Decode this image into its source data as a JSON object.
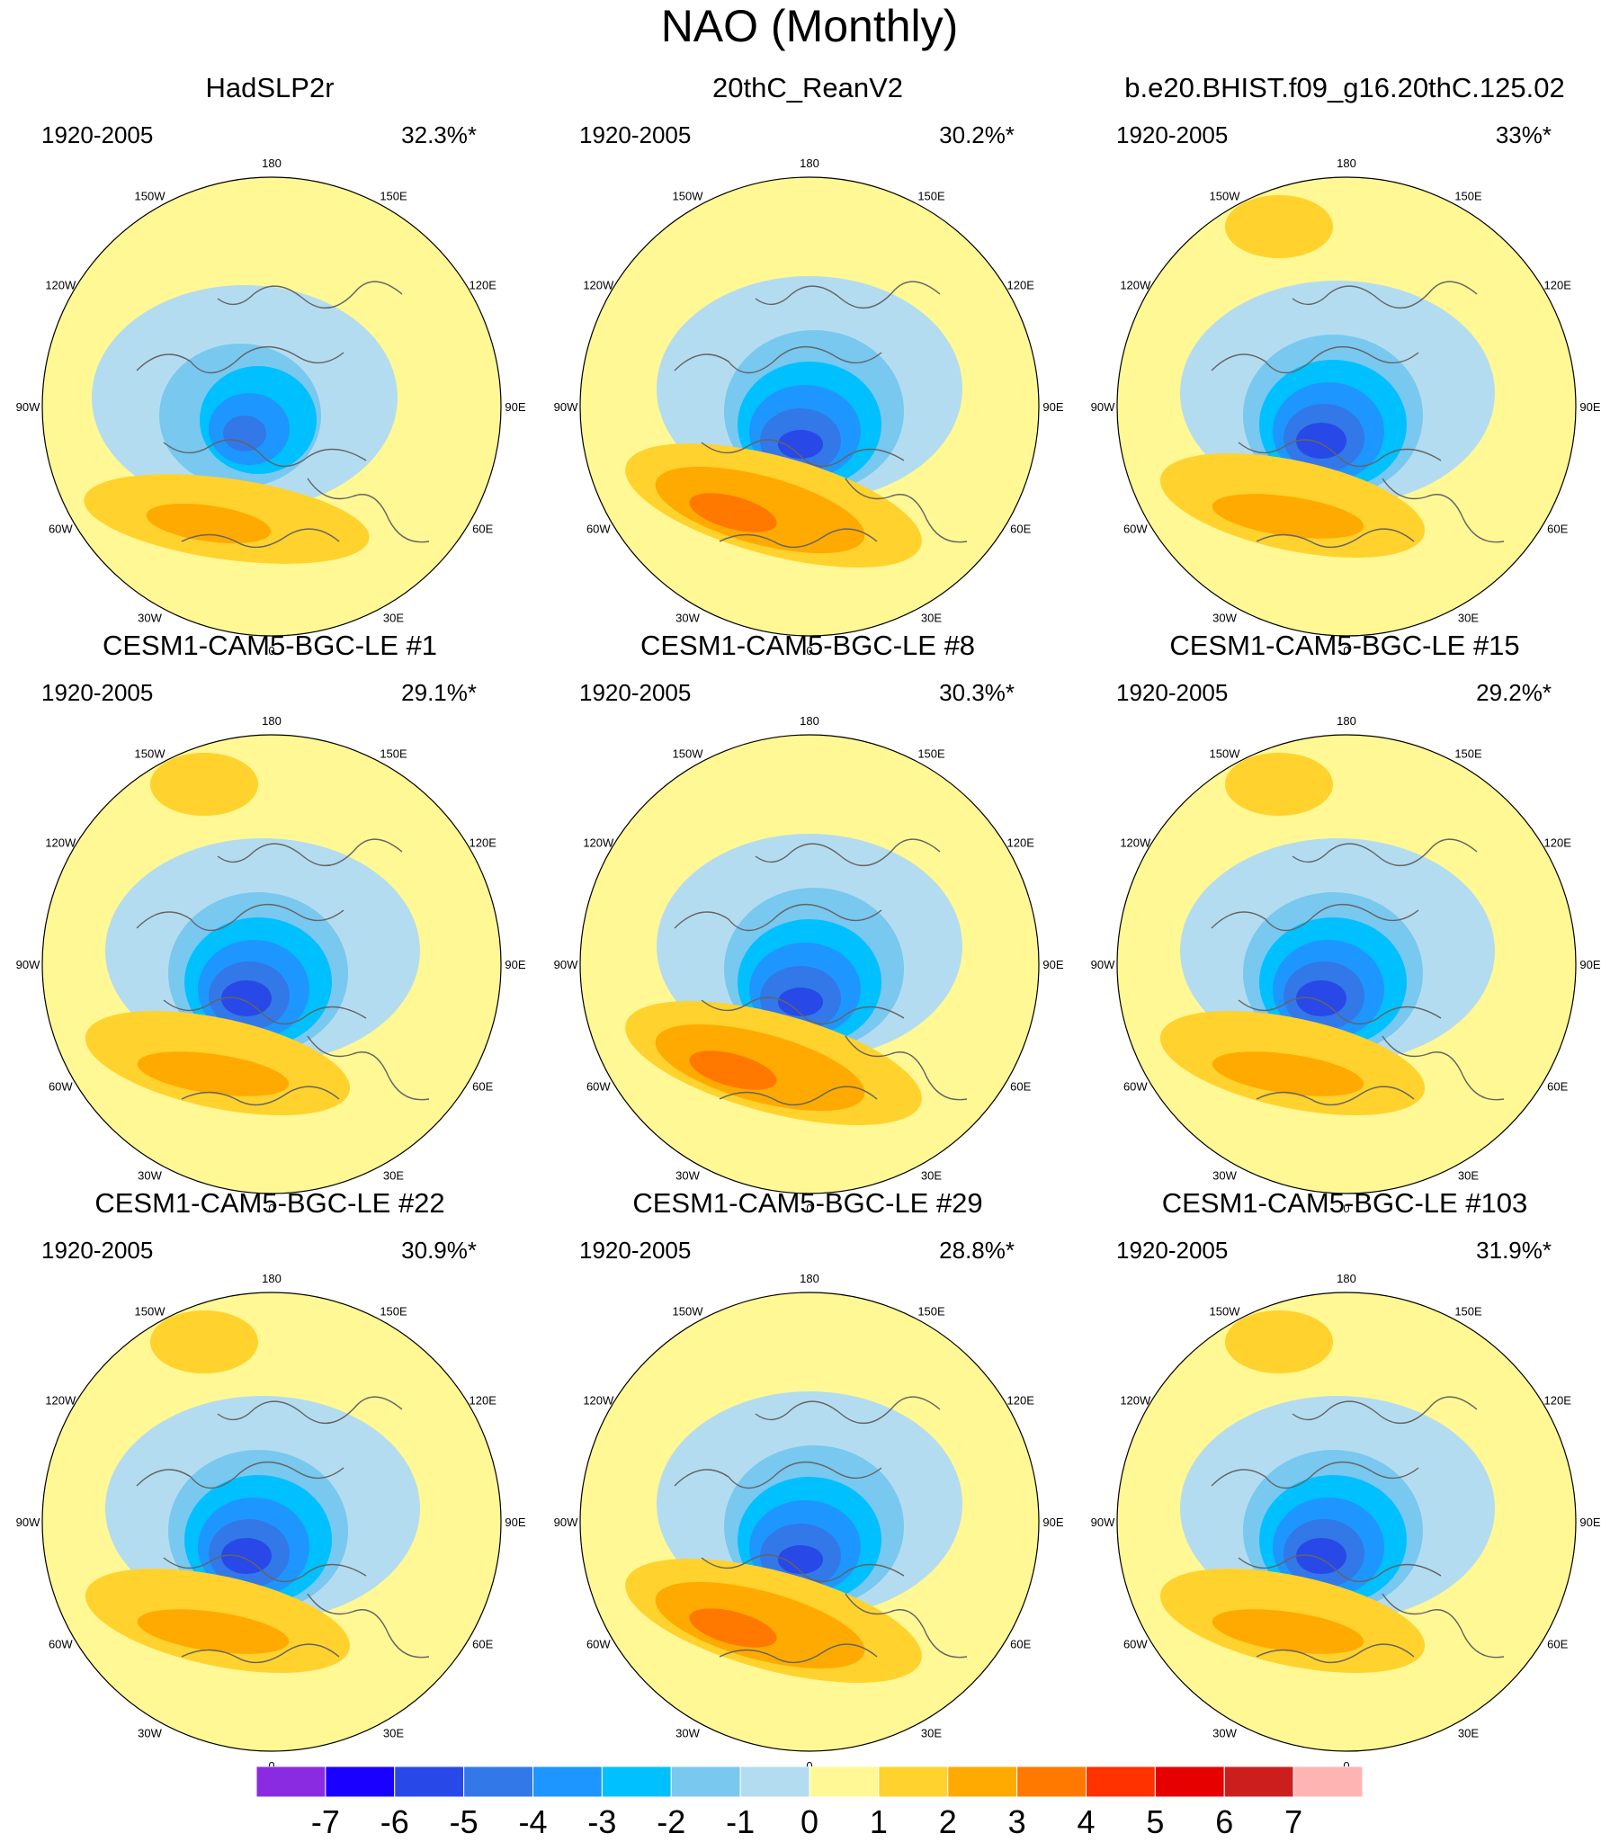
{
  "title": "NAO (Monthly)",
  "panels": [
    {
      "title": "HadSLP2r",
      "period": "1920-2005",
      "percent": "32.3%*",
      "pattern": 0
    },
    {
      "title": "20thC_ReanV2",
      "period": "1920-2005",
      "percent": "30.2%*",
      "pattern": 1
    },
    {
      "title": "b.e20.BHIST.f09_g16.20thC.125.02",
      "period": "1920-2005",
      "percent": "33%*",
      "pattern": 2
    },
    {
      "title": "CESM1-CAM5-BGC-LE #1",
      "period": "1920-2005",
      "percent": "29.1%*",
      "pattern": 2
    },
    {
      "title": "CESM1-CAM5-BGC-LE #8",
      "period": "1920-2005",
      "percent": "30.3%*",
      "pattern": 1
    },
    {
      "title": "CESM1-CAM5-BGC-LE #15",
      "period": "1920-2005",
      "percent": "29.2%*",
      "pattern": 2
    },
    {
      "title": "CESM1-CAM5-BGC-LE #22",
      "period": "1920-2005",
      "percent": "30.9%*",
      "pattern": 2
    },
    {
      "title": "CESM1-CAM5-BGC-LE #29",
      "period": "1920-2005",
      "percent": "28.8%*",
      "pattern": 1
    },
    {
      "title": "CESM1-CAM5-BGC-LE #103",
      "period": "1920-2005",
      "percent": "31.9%*",
      "pattern": 2
    }
  ],
  "longitude_labels": [
    "180",
    "150E",
    "120E",
    "90E",
    "60E",
    "30E",
    "0",
    "30W",
    "60W",
    "90W",
    "120W",
    "150W"
  ],
  "colorbar": {
    "labels": [
      "-7",
      "-6",
      "-5",
      "-4",
      "-3",
      "-2",
      "-1",
      "0",
      "1",
      "2",
      "3",
      "4",
      "5",
      "6",
      "7"
    ],
    "colors": [
      "#8a2be2",
      "#1a00ff",
      "#2848e8",
      "#3278e8",
      "#1e96ff",
      "#00c0ff",
      "#78c8f0",
      "#b4dcf0",
      "#fff894",
      "#ffd22d",
      "#ffaa00",
      "#ff7800",
      "#ff3200",
      "#e60000",
      "#cd1e1e",
      "#ffb4b4"
    ]
  },
  "colors": {
    "background": "#fff894",
    "low_1": "#b4dcf0",
    "low_2": "#78c8f0",
    "low_3": "#00c0ff",
    "low_4": "#1e96ff",
    "low_5": "#3278e8",
    "low_6": "#2848e8",
    "high_1": "#ffd22d",
    "high_2": "#ffaa00",
    "high_3": "#ff7800",
    "coast": "#646464"
  }
}
